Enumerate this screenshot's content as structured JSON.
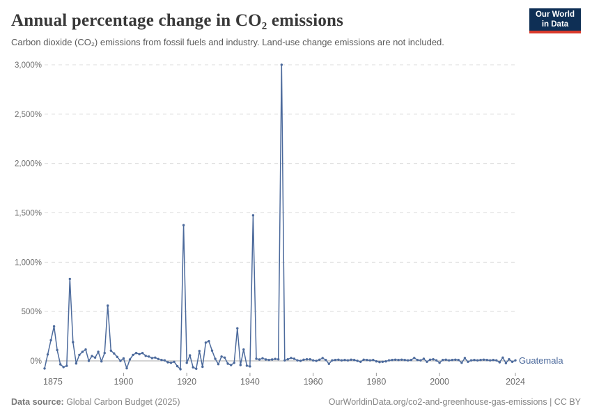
{
  "header": {
    "title": "Annual percentage change in CO₂ emissions",
    "subtitle": "Carbon dioxide (CO₂) emissions from fossil fuels and industry. Land-use change emissions are not included.",
    "logo": {
      "line1": "Our World",
      "line2": "in Data",
      "bg": "#0e2f55",
      "accent": "#d93a2b"
    }
  },
  "footer": {
    "source_label": "Data source:",
    "source_value": " Global Carbon Budget (2025)",
    "link": "OurWorldinData.org/co2-and-greenhouse-gas-emissions | CC BY"
  },
  "chart_data": {
    "type": "line",
    "title": "Annual percentage change in CO₂ emissions",
    "xlabel": "",
    "ylabel": "",
    "grid": "horizontal-dashed",
    "legend_position": "end-of-line-label",
    "xlim": [
      1875,
      2024
    ],
    "ylim": [
      -100,
      3000
    ],
    "xticks": [
      1875,
      1900,
      1920,
      1940,
      1960,
      1980,
      2000,
      2024
    ],
    "ytick_values": [
      0,
      500,
      1000,
      1500,
      2000,
      2500,
      3000
    ],
    "ytick_labels": [
      "0%",
      "500%",
      "1,000%",
      "1,500%",
      "2,000%",
      "2,500%",
      "3,000%"
    ],
    "axis_color": "#6d6d6d",
    "gridline_color": "#dcdcdc",
    "zero_line_color": "#a8a8a8",
    "series": [
      {
        "name": "Guatemala",
        "color": "#4c6a9c",
        "years": [
          1875,
          1876,
          1877,
          1878,
          1879,
          1880,
          1881,
          1882,
          1883,
          1884,
          1885,
          1886,
          1887,
          1888,
          1889,
          1890,
          1891,
          1892,
          1893,
          1894,
          1895,
          1896,
          1897,
          1898,
          1899,
          1900,
          1901,
          1902,
          1903,
          1904,
          1905,
          1906,
          1907,
          1908,
          1909,
          1910,
          1911,
          1912,
          1913,
          1914,
          1915,
          1916,
          1917,
          1918,
          1919,
          1920,
          1921,
          1922,
          1923,
          1924,
          1925,
          1926,
          1927,
          1928,
          1929,
          1930,
          1931,
          1932,
          1933,
          1934,
          1935,
          1936,
          1937,
          1938,
          1939,
          1940,
          1941,
          1942,
          1943,
          1944,
          1945,
          1946,
          1947,
          1948,
          1949,
          1950,
          1951,
          1952,
          1953,
          1954,
          1955,
          1956,
          1957,
          1958,
          1959,
          1960,
          1961,
          1962,
          1963,
          1964,
          1965,
          1966,
          1967,
          1968,
          1969,
          1970,
          1971,
          1972,
          1973,
          1974,
          1975,
          1976,
          1977,
          1978,
          1979,
          1980,
          1981,
          1982,
          1983,
          1984,
          1985,
          1986,
          1987,
          1988,
          1989,
          1990,
          1991,
          1992,
          1993,
          1994,
          1995,
          1996,
          1997,
          1998,
          1999,
          2000,
          2001,
          2002,
          2003,
          2004,
          2005,
          2006,
          2007,
          2008,
          2009,
          2010,
          2011,
          2012,
          2013,
          2014,
          2015,
          2016,
          2017,
          2018,
          2019,
          2020,
          2021,
          2022,
          2023,
          2024
        ],
        "values": [
          -77,
          65,
          210,
          350,
          110,
          -35,
          -63,
          -50,
          830,
          190,
          -26,
          61,
          91,
          115,
          0,
          49,
          33,
          92,
          -5,
          80,
          560,
          104,
          75,
          40,
          0,
          25,
          -75,
          15,
          61,
          80,
          68,
          80,
          51,
          44,
          28,
          33,
          19,
          9,
          5,
          -14,
          -19,
          -9,
          -54,
          -85,
          1375,
          -20,
          56,
          -65,
          -80,
          100,
          -60,
          185,
          200,
          104,
          21,
          -33,
          44,
          33,
          -28,
          -42,
          -20,
          330,
          -42,
          115,
          -49,
          -56,
          1475,
          21,
          14,
          26,
          14,
          9,
          14,
          20,
          16,
          3000,
          5,
          16,
          30,
          21,
          5,
          0,
          12,
          16,
          16,
          5,
          0,
          12,
          28,
          9,
          -30,
          5,
          9,
          12,
          5,
          9,
          5,
          12,
          9,
          0,
          -9,
          12,
          9,
          5,
          9,
          -5,
          -12,
          -9,
          -5,
          5,
          9,
          12,
          9,
          12,
          9,
          5,
          9,
          30,
          9,
          5,
          21,
          -9,
          12,
          16,
          5,
          -19,
          9,
          12,
          5,
          9,
          12,
          9,
          -19,
          28,
          -9,
          5,
          9,
          5,
          9,
          12,
          9,
          5,
          9,
          5,
          -14,
          33,
          -23,
          16,
          -9,
          5
        ]
      }
    ]
  }
}
